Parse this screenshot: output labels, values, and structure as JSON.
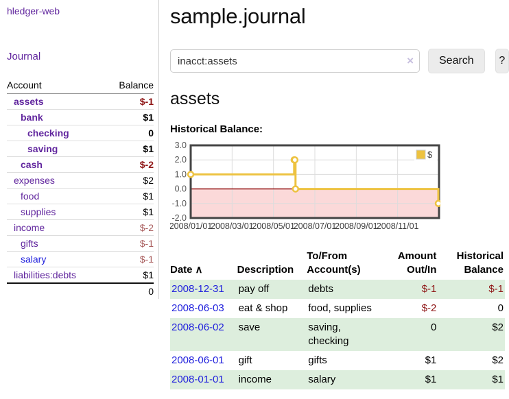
{
  "colors": {
    "link_purple": "#61269e",
    "link_blue": "#2222dd",
    "negative_strong": "#8e1414",
    "negative_soft": "#aa5f5f",
    "row_green": "#ddeedd"
  },
  "sidebar": {
    "brand": "hledger-web",
    "journal_link": "Journal",
    "accounts": {
      "headers": {
        "account": "Account",
        "balance": "Balance"
      },
      "rows": [
        {
          "name": "assets",
          "depth": 1,
          "bold": true,
          "link": "purple",
          "balance": "$-1",
          "balance_style": "neg-strong"
        },
        {
          "name": "bank",
          "depth": 2,
          "bold": true,
          "link": "purple",
          "balance": "$1",
          "balance_style": "pos"
        },
        {
          "name": "checking",
          "depth": 3,
          "bold": true,
          "link": "purple",
          "balance": "0",
          "balance_style": "pos"
        },
        {
          "name": "saving",
          "depth": 3,
          "bold": true,
          "link": "purple",
          "balance": "$1",
          "balance_style": "pos"
        },
        {
          "name": "cash",
          "depth": 2,
          "bold": true,
          "link": "purple",
          "balance": "$-2",
          "balance_style": "neg-strong"
        },
        {
          "name": "expenses",
          "depth": 1,
          "bold": false,
          "link": "purple",
          "balance": "$2",
          "balance_style": "pos"
        },
        {
          "name": "food",
          "depth": 2,
          "bold": false,
          "link": "purple",
          "balance": "$1",
          "balance_style": "pos"
        },
        {
          "name": "supplies",
          "depth": 2,
          "bold": false,
          "link": "purple",
          "balance": "$1",
          "balance_style": "pos"
        },
        {
          "name": "income",
          "depth": 1,
          "bold": false,
          "link": "purple",
          "balance": "$-2",
          "balance_style": "neg-soft"
        },
        {
          "name": "gifts",
          "depth": 2,
          "bold": false,
          "link": "purple",
          "balance": "$-1",
          "balance_style": "neg-soft"
        },
        {
          "name": "salary",
          "depth": 2,
          "bold": false,
          "link": "blue",
          "balance": "$-1",
          "balance_style": "neg-soft"
        },
        {
          "name": "liabilities:debts",
          "depth": 1,
          "bold": false,
          "link": "purple",
          "balance": "$1",
          "balance_style": "pos"
        }
      ],
      "total": "0"
    }
  },
  "header": {
    "title": "sample.journal"
  },
  "search": {
    "value": "inacct:assets",
    "clear_icon": "×",
    "button_label": "Search",
    "help_label": "?"
  },
  "account_page": {
    "heading": "assets",
    "chart_label": "Historical Balance:"
  },
  "chart_data": {
    "type": "line",
    "step": true,
    "title": "Historical Balance:",
    "series": [
      {
        "name": "$",
        "color": "#edc240",
        "points": [
          {
            "x": "2008-01-01",
            "y": 1
          },
          {
            "x": "2008-06-01",
            "y": 2
          },
          {
            "x": "2008-06-02",
            "y": 2
          },
          {
            "x": "2008-06-03",
            "y": 0
          },
          {
            "x": "2008-12-31",
            "y": -1
          }
        ]
      }
    ],
    "xlim": [
      "2008-01-01",
      "2009-01-01"
    ],
    "ylim": [
      -2,
      3
    ],
    "y_ticks": [
      3,
      2,
      1,
      0,
      -1,
      -2
    ],
    "y_tick_labels": [
      "3.0",
      "2.0",
      "1.0",
      "0.0",
      "-1.0",
      "-2.0"
    ],
    "x_tick_labels": [
      "2008/01/01",
      "2008/03/01",
      "2008/05/01",
      "2008/07/01",
      "2008/09/01",
      "2008/11/01"
    ],
    "x_tick_months": [
      0,
      2,
      4,
      6,
      8,
      10
    ],
    "grid": "on",
    "grid_color": "#dcdcdc",
    "border_color": "#444444",
    "tick_text_color": "#545454",
    "negative_fill": "#fbd9d9",
    "zero_line_color": "#8b0000",
    "legend_position": "top-right"
  },
  "register": {
    "headers": [
      {
        "label": "Date",
        "sort_icon": "∧"
      },
      {
        "label": "Description"
      },
      {
        "label": "To/From Account(s)"
      },
      {
        "label": "Amount Out/In"
      },
      {
        "label": "Historical Balance"
      }
    ],
    "rows": [
      {
        "date": "2008-12-31",
        "description": "pay off",
        "accounts": "debts",
        "amount": "$-1",
        "amount_style": "neg",
        "balance": "$-1",
        "balance_style": "neg"
      },
      {
        "date": "2008-06-03",
        "description": "eat & shop",
        "accounts": "food, supplies",
        "amount": "$-2",
        "amount_style": "neg",
        "balance": "0",
        "balance_style": "pos"
      },
      {
        "date": "2008-06-02",
        "description": "save",
        "accounts": "saving, checking",
        "amount": "0",
        "amount_style": "pos",
        "balance": "$2",
        "balance_style": "pos"
      },
      {
        "date": "2008-06-01",
        "description": "gift",
        "accounts": "gifts",
        "amount": "$1",
        "amount_style": "pos",
        "balance": "$2",
        "balance_style": "pos"
      },
      {
        "date": "2008-01-01",
        "description": "income",
        "accounts": "salary",
        "amount": "$1",
        "amount_style": "pos",
        "balance": "$1",
        "balance_style": "pos"
      }
    ]
  }
}
